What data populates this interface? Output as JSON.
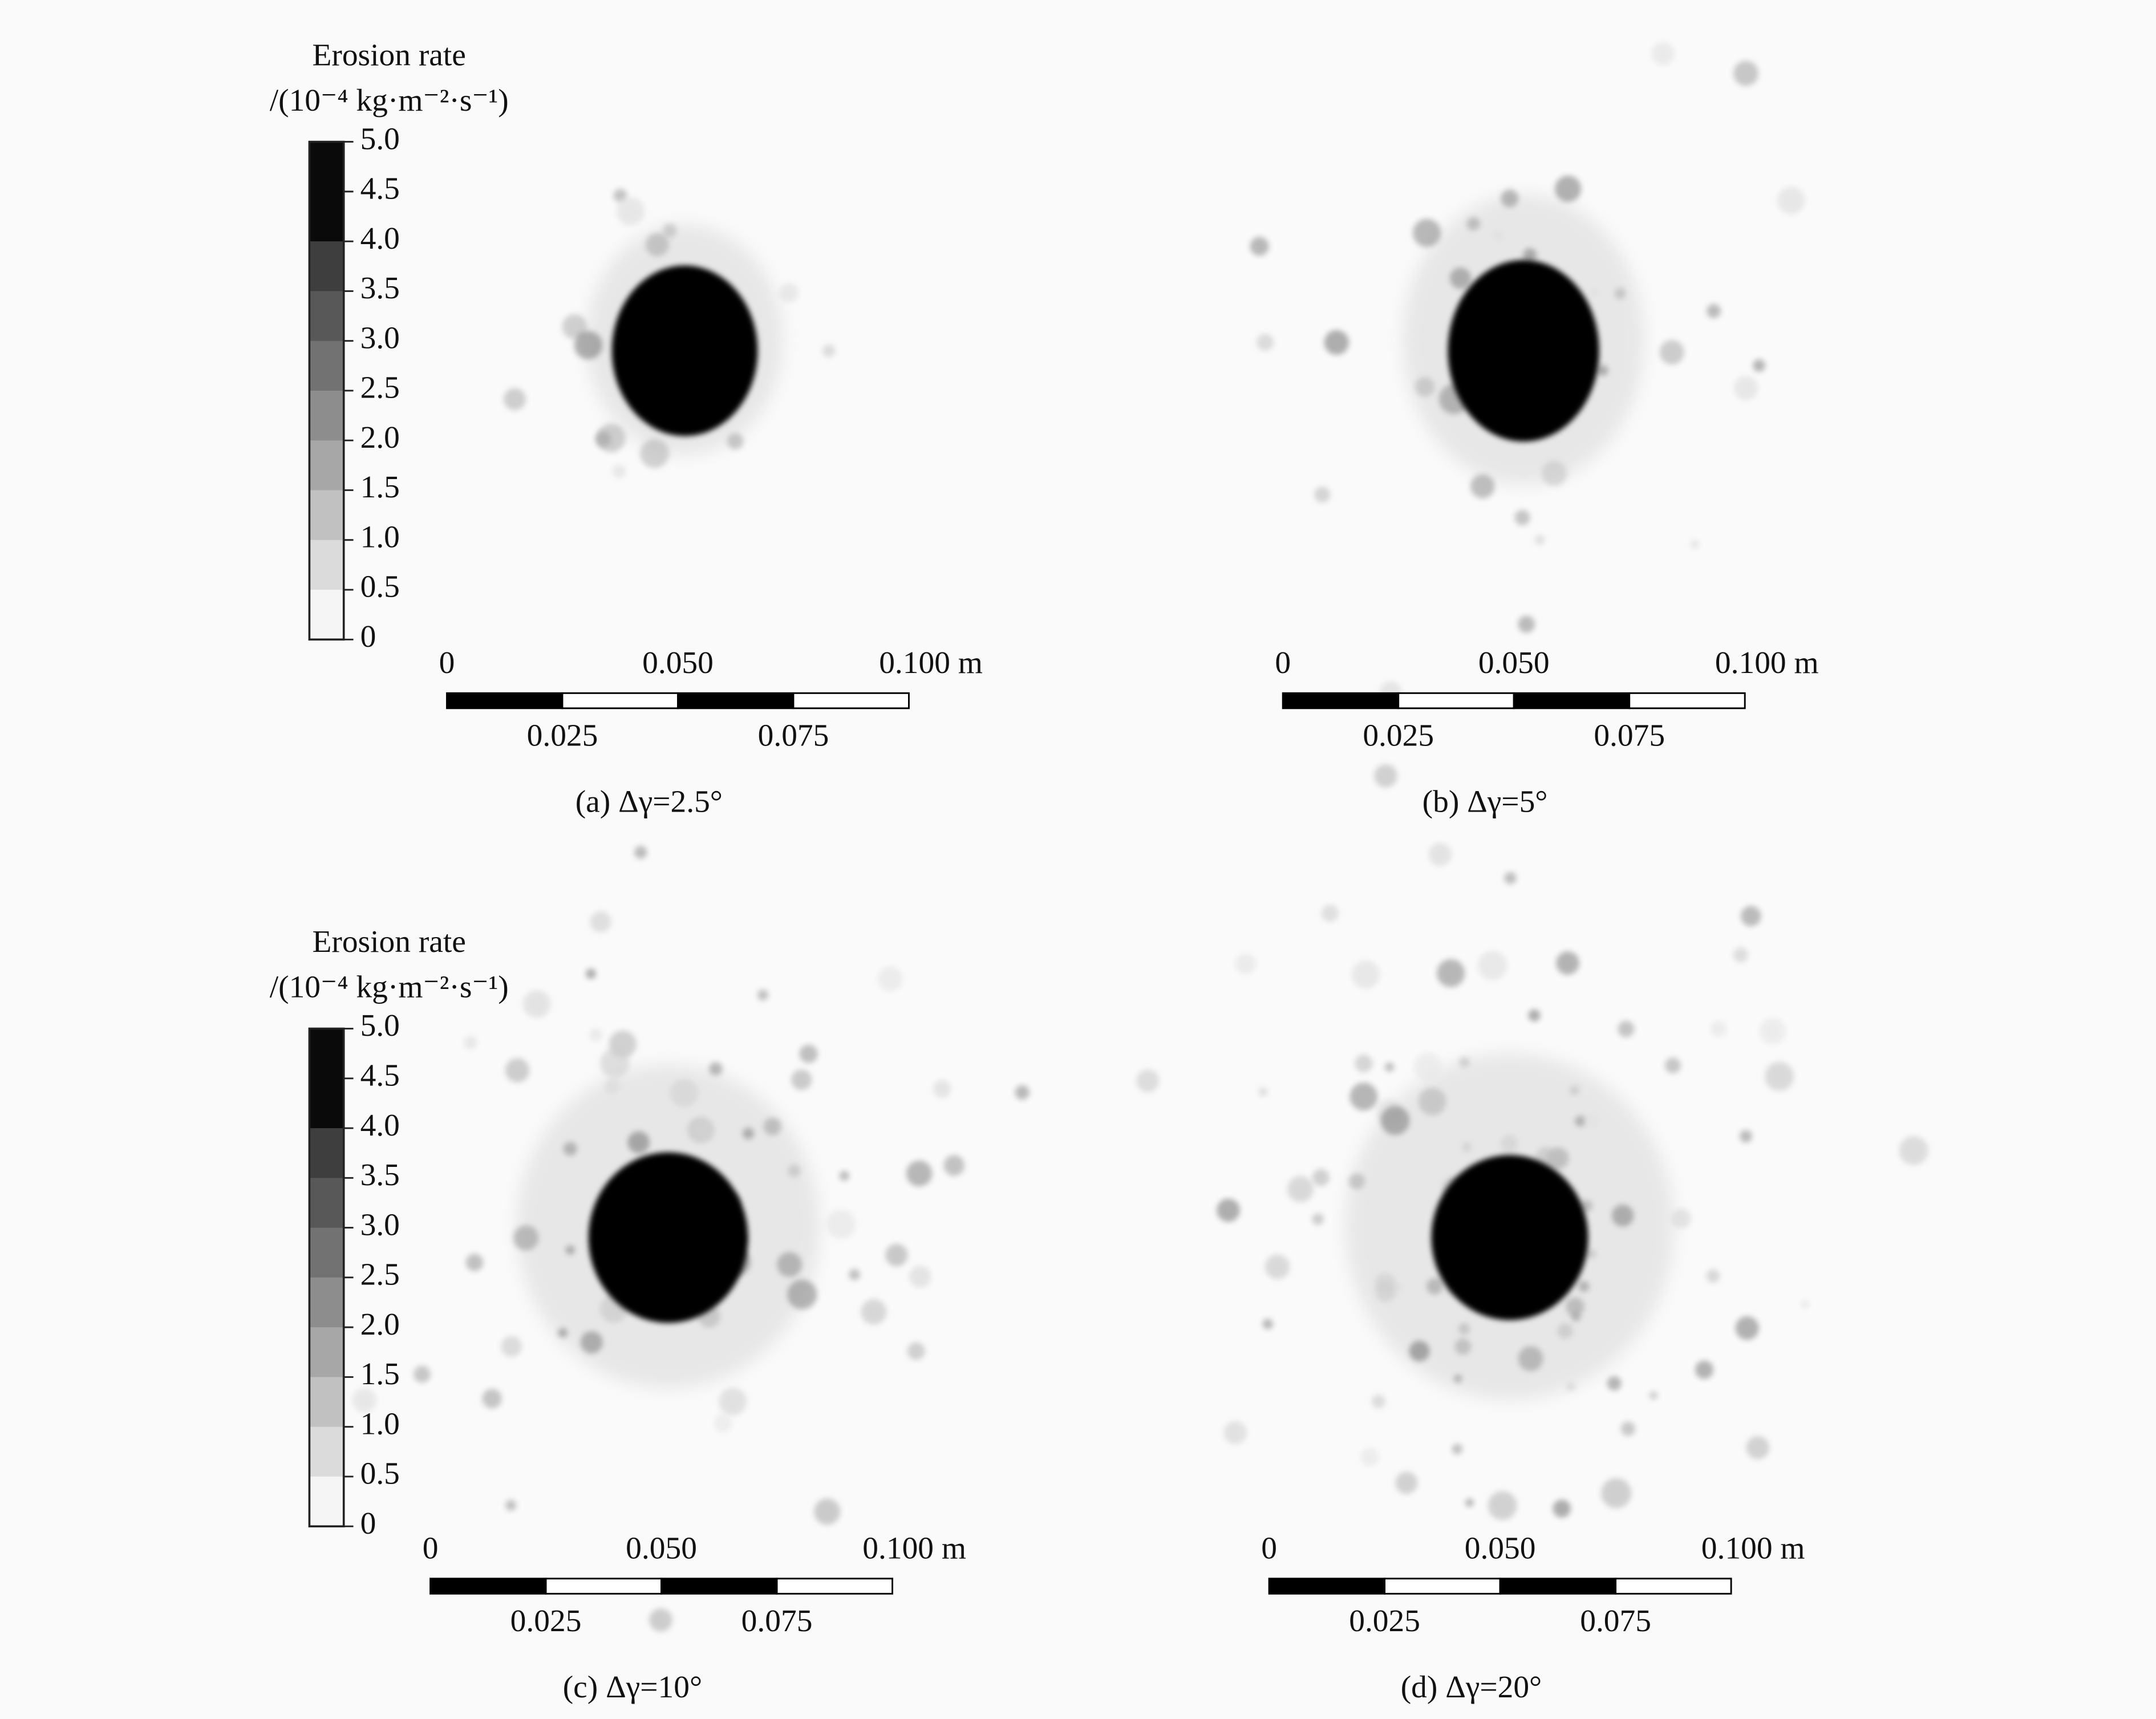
{
  "colorbar": {
    "title": "Erosion rate",
    "unit": "/(10⁻⁴ kg·m⁻²·s⁻¹)",
    "ticks": [
      "5.0",
      "4.5",
      "4.0",
      "3.5",
      "3.0",
      "2.5",
      "2.0",
      "1.5",
      "1.0",
      "0.5",
      "0"
    ]
  },
  "panels": [
    {
      "caption": "(a) Δγ=2.5°",
      "scale_top": [
        "0",
        "0.050",
        "0.100 m"
      ],
      "scale_bottom": [
        "0.025",
        "0.075"
      ]
    },
    {
      "caption": "(b) Δγ=5°",
      "scale_top": [
        "0",
        "0.050",
        "0.100 m"
      ],
      "scale_bottom": [
        "0.025",
        "0.075"
      ]
    },
    {
      "caption": "(c) Δγ=10°",
      "scale_top": [
        "0",
        "0.050",
        "0.100 m"
      ],
      "scale_bottom": [
        "0.025",
        "0.075"
      ]
    },
    {
      "caption": "(d) Δγ=20°",
      "scale_top": [
        "0",
        "0.050",
        "0.100 m"
      ],
      "scale_bottom": [
        "0.025",
        "0.075"
      ]
    }
  ]
}
